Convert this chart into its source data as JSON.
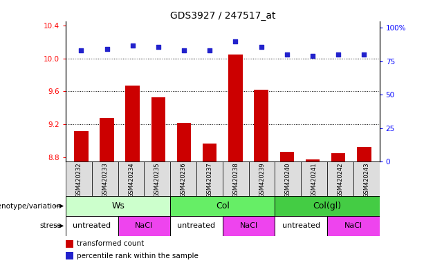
{
  "title": "GDS3927 / 247517_at",
  "samples": [
    "GSM420232",
    "GSM420233",
    "GSM420234",
    "GSM420235",
    "GSM420236",
    "GSM420237",
    "GSM420238",
    "GSM420239",
    "GSM420240",
    "GSM420241",
    "GSM420242",
    "GSM420243"
  ],
  "bar_values": [
    9.12,
    9.28,
    9.67,
    9.53,
    9.22,
    8.97,
    10.05,
    9.62,
    8.87,
    8.78,
    8.85,
    8.93
  ],
  "dot_values": [
    83,
    84,
    87,
    86,
    83,
    83,
    90,
    86,
    80,
    79,
    80,
    80
  ],
  "bar_color": "#cc0000",
  "dot_color": "#2222cc",
  "ylim_left": [
    8.75,
    10.45
  ],
  "ylim_right": [
    0,
    105
  ],
  "yticks_left": [
    8.8,
    9.2,
    9.6,
    10.0,
    10.4
  ],
  "yticks_right": [
    0,
    25,
    50,
    75,
    100
  ],
  "ytick_labels_right": [
    "0",
    "25",
    "50",
    "75",
    "100%"
  ],
  "grid_lines": [
    9.2,
    9.6,
    10.0
  ],
  "genotype_groups": [
    {
      "label": "Ws",
      "start": 0,
      "end": 4,
      "color": "#ccffcc"
    },
    {
      "label": "Col",
      "start": 4,
      "end": 8,
      "color": "#66ee66"
    },
    {
      "label": "Col(gl)",
      "start": 8,
      "end": 12,
      "color": "#44cc44"
    }
  ],
  "stress_groups": [
    {
      "label": "untreated",
      "start": 0,
      "end": 2,
      "color": "#ffffff"
    },
    {
      "label": "NaCl",
      "start": 2,
      "end": 4,
      "color": "#ee44ee"
    },
    {
      "label": "untreated",
      "start": 4,
      "end": 6,
      "color": "#ffffff"
    },
    {
      "label": "NaCl",
      "start": 6,
      "end": 8,
      "color": "#ee44ee"
    },
    {
      "label": "untreated",
      "start": 8,
      "end": 10,
      "color": "#ffffff"
    },
    {
      "label": "NaCl",
      "start": 10,
      "end": 12,
      "color": "#ee44ee"
    }
  ],
  "legend_red_label": "transformed count",
  "legend_blue_label": "percentile rank within the sample",
  "genotype_row_label": "genotype/variation",
  "stress_row_label": "stress",
  "bar_bottom": 8.75,
  "sample_bg": "#dddddd"
}
